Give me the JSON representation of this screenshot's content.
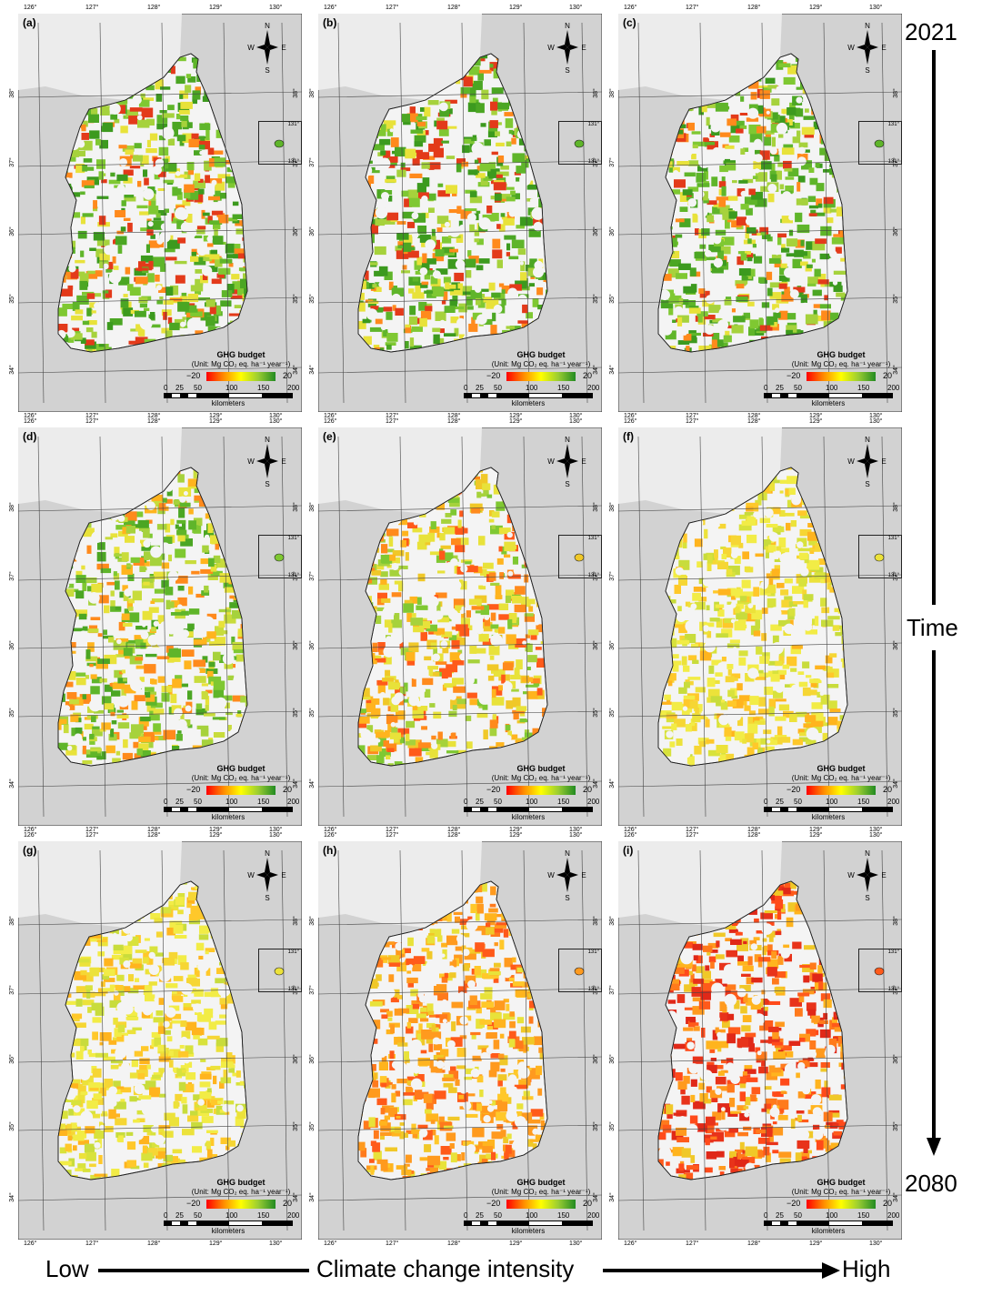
{
  "panels": [
    {
      "label": "(a)",
      "row": 0,
      "col": 0,
      "theme": "green"
    },
    {
      "label": "(b)",
      "row": 0,
      "col": 1,
      "theme": "green"
    },
    {
      "label": "(c)",
      "row": 0,
      "col": 2,
      "theme": "green"
    },
    {
      "label": "(d)",
      "row": 1,
      "col": 0,
      "theme": "greenyellow"
    },
    {
      "label": "(e)",
      "row": 1,
      "col": 1,
      "theme": "yelloworange"
    },
    {
      "label": "(f)",
      "row": 1,
      "col": 2,
      "theme": "yellow"
    },
    {
      "label": "(g)",
      "row": 2,
      "col": 0,
      "theme": "yellow"
    },
    {
      "label": "(h)",
      "row": 2,
      "col": 1,
      "theme": "orange"
    },
    {
      "label": "(i)",
      "row": 2,
      "col": 2,
      "theme": "red"
    }
  ],
  "legend": {
    "title": "GHG budget",
    "unit": "(Unit: Mg CO₂ eq. ha⁻¹ year⁻¹)",
    "min": "−20",
    "max": "20"
  },
  "scalebar": {
    "ticks": [
      "0",
      "25",
      "50",
      "100",
      "150",
      "200"
    ],
    "unit": "kilometers"
  },
  "compass": {
    "n": "N",
    "s": "S",
    "e": "E",
    "w": "W"
  },
  "graticule": {
    "lon": [
      "126°",
      "127°",
      "128°",
      "129°",
      "130°"
    ],
    "lat": [
      "38°",
      "37°",
      "36°",
      "35°",
      "34°"
    ]
  },
  "inset": {
    "top": "131°",
    "bottom": "131°"
  },
  "time_axis": {
    "start": "2021",
    "label": "Time",
    "end": "2080"
  },
  "intensity_axis": {
    "low": "Low",
    "label": "Climate change intensity",
    "high": "High"
  },
  "colors": {
    "sea": "#d2d2d2",
    "north_land": "#ececec",
    "high": "#228b22",
    "mid": "#ffff00",
    "low": "#ff0000"
  }
}
